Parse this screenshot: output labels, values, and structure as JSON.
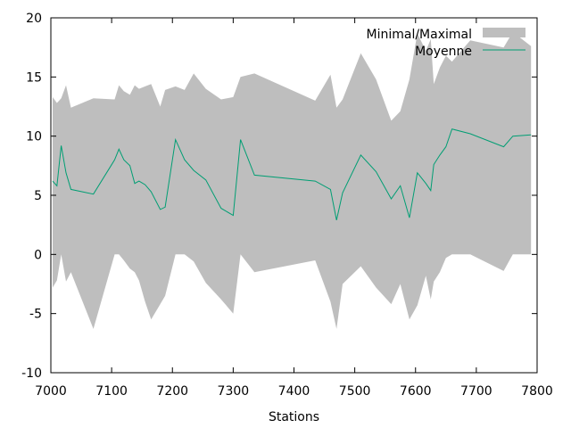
{
  "chart_data": {
    "type": "area",
    "title": "",
    "xlabel": "Stations",
    "ylabel": "",
    "xlim": [
      7000,
      7800
    ],
    "ylim": [
      -10,
      20
    ],
    "x_ticks": [
      7000,
      7100,
      7200,
      7300,
      7400,
      7500,
      7600,
      7700,
      7800
    ],
    "y_ticks": [
      -10,
      -5,
      0,
      5,
      10,
      15,
      20
    ],
    "grid": false,
    "legend_position": "top-right",
    "colors": {
      "band": "#bebebe",
      "line": "#009e73"
    },
    "series": [
      {
        "name": "Minimal/Maximal",
        "kind": "band",
        "x": [
          7003,
          7010,
          7017,
          7025,
          7033,
          7070,
          7105,
          7112,
          7120,
          7130,
          7138,
          7145,
          7155,
          7165,
          7180,
          7188,
          7205,
          7220,
          7235,
          7255,
          7280,
          7300,
          7312,
          7335,
          7435,
          7460,
          7470,
          7480,
          7510,
          7535,
          7560,
          7575,
          7590,
          7603,
          7617,
          7625,
          7630,
          7640,
          7650,
          7660,
          7690,
          7745,
          7760,
          7790
        ],
        "low": [
          -2.8,
          -2.2,
          0.0,
          -2.3,
          -1.5,
          -6.3,
          0.0,
          0.0,
          -0.5,
          -1.2,
          -1.5,
          -2.2,
          -4.0,
          -5.5,
          -4.2,
          -3.5,
          0.0,
          0.0,
          -0.6,
          -2.4,
          -3.8,
          -5.0,
          0.0,
          -1.5,
          -0.5,
          -4.0,
          -6.3,
          -2.5,
          -1.0,
          -2.8,
          -4.2,
          -2.5,
          -5.5,
          -4.3,
          -1.8,
          -3.8,
          -2.3,
          -1.5,
          -0.3,
          0.0,
          0.0,
          -1.4,
          0.0,
          0.0
        ],
        "high": [
          13.3,
          12.8,
          13.2,
          14.3,
          12.4,
          13.2,
          13.1,
          14.3,
          13.8,
          13.5,
          14.3,
          14.0,
          14.2,
          14.4,
          12.5,
          13.9,
          14.2,
          13.9,
          15.3,
          14.0,
          13.1,
          13.3,
          15.0,
          15.3,
          13.0,
          15.2,
          12.4,
          13.1,
          17.0,
          14.8,
          11.3,
          12.1,
          14.8,
          18.7,
          17.2,
          18.2,
          14.4,
          15.8,
          16.8,
          16.3,
          18.1,
          17.5,
          18.8,
          17.6
        ]
      },
      {
        "name": "Moyenne",
        "kind": "line",
        "x": [
          7003,
          7010,
          7017,
          7025,
          7033,
          7070,
          7105,
          7112,
          7120,
          7130,
          7138,
          7145,
          7155,
          7165,
          7180,
          7188,
          7205,
          7220,
          7235,
          7255,
          7280,
          7300,
          7312,
          7335,
          7435,
          7460,
          7470,
          7480,
          7510,
          7535,
          7560,
          7575,
          7590,
          7603,
          7617,
          7625,
          7630,
          7640,
          7650,
          7660,
          7690,
          7745,
          7760,
          7790
        ],
        "y": [
          6.2,
          5.8,
          9.2,
          6.9,
          5.5,
          5.1,
          8.0,
          8.9,
          8.0,
          7.5,
          6.0,
          6.2,
          5.9,
          5.3,
          3.8,
          4.0,
          9.7,
          8.0,
          7.1,
          6.3,
          3.9,
          3.3,
          9.7,
          6.7,
          6.2,
          5.5,
          2.9,
          5.2,
          8.4,
          7.0,
          4.7,
          5.8,
          3.1,
          6.9,
          6.0,
          5.4,
          7.6,
          8.4,
          9.1,
          10.6,
          10.2,
          9.1,
          10.0,
          10.1
        ]
      }
    ]
  }
}
